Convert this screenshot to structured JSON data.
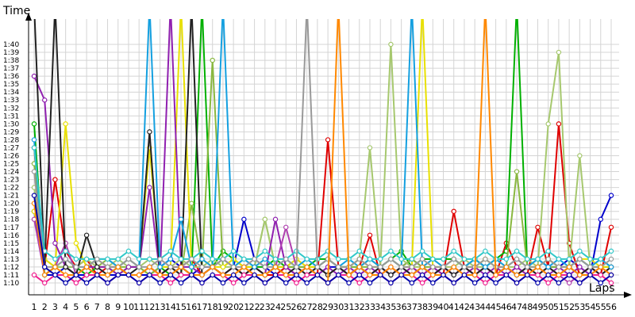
{
  "chart_data": {
    "type": "line",
    "title": "",
    "xlabel": "Laps",
    "ylabel": "Time",
    "x": [
      1,
      2,
      3,
      4,
      5,
      6,
      7,
      8,
      9,
      10,
      11,
      12,
      13,
      14,
      15,
      16,
      17,
      18,
      19,
      20,
      21,
      22,
      23,
      24,
      25,
      26,
      27,
      28,
      29,
      30,
      31,
      32,
      33,
      34,
      35,
      36,
      37,
      38,
      39,
      40,
      41,
      42,
      43,
      44,
      45,
      46,
      47,
      48,
      49,
      50,
      51,
      52,
      53,
      54,
      55,
      56
    ],
    "xlim": [
      1,
      56
    ],
    "ylim": [
      69,
      101
    ],
    "y_ticks": [
      70,
      71,
      72,
      73,
      74,
      75,
      76,
      77,
      78,
      79,
      80,
      81,
      82,
      83,
      84,
      85,
      86,
      87,
      88,
      89,
      90,
      91,
      92,
      93,
      94,
      95,
      96,
      97,
      98,
      99,
      100
    ],
    "y_tick_labels": [
      "1:10",
      "1:11",
      "1:12",
      "1:13",
      "1:14",
      "1:15",
      "1:16",
      "1:17",
      "1:18",
      "1:19",
      "1:20",
      "1:21",
      "1:22",
      "1:23",
      "1:24",
      "1:25",
      "1:26",
      "1:27",
      "1:28",
      "1:29",
      "1:30",
      "1:31",
      "1:32",
      "1:33",
      "1:34",
      "1:35",
      "1:36",
      "1:37",
      "1:38",
      "1:39",
      "1:40"
    ],
    "x_tick_labels": [
      "1",
      "2",
      "3",
      "4",
      "5",
      "6",
      "7",
      "8",
      "9",
      "10",
      "11",
      "12",
      "13",
      "14",
      "15",
      "16",
      "17",
      "18",
      "19",
      "20",
      "21",
      "22",
      "23",
      "24",
      "25",
      "26",
      "27",
      "28",
      "29",
      "30",
      "31",
      "32",
      "33",
      "34",
      "35",
      "36",
      "37",
      "38",
      "39",
      "40",
      "41",
      "42",
      "43",
      "44",
      "45",
      "46",
      "47",
      "48",
      "49",
      "50",
      "51",
      "52",
      "53",
      "54",
      "55",
      "56"
    ],
    "grid": true,
    "legend": "none",
    "series": [
      {
        "color": "#0000cc",
        "values": [
          79,
          71,
          71,
          72,
          71,
          71,
          71,
          71,
          71,
          71,
          71,
          71,
          72,
          73,
          72,
          71,
          72,
          72,
          73,
          72,
          78,
          73,
          72,
          71,
          72,
          71,
          72,
          71,
          72,
          72,
          71,
          72,
          71,
          72,
          71,
          72,
          73,
          72,
          71,
          72,
          71,
          72,
          73,
          72,
          71,
          72,
          71,
          72,
          73,
          72,
          72,
          73,
          72,
          71,
          78,
          81
        ]
      },
      {
        "color": "#e00000",
        "values": [
          87,
          72,
          83,
          74,
          72,
          73,
          71,
          72,
          72,
          71,
          71,
          72,
          71,
          72,
          72,
          73,
          71,
          72,
          71,
          72,
          71,
          72,
          71,
          71,
          72,
          71,
          72,
          71,
          88,
          72,
          71,
          72,
          76,
          71,
          72,
          71,
          72,
          71,
          72,
          71,
          79,
          72,
          71,
          72,
          71,
          75,
          72,
          71,
          77,
          72,
          90,
          75,
          71,
          72,
          71,
          77
        ]
      },
      {
        "color": "#00b000",
        "values": [
          90,
          71,
          72,
          72,
          72,
          71,
          72,
          72,
          71,
          72,
          72,
          71,
          72,
          71,
          72,
          71,
          105,
          72,
          74,
          73,
          72,
          72,
          72,
          73,
          72,
          72,
          72,
          73,
          73,
          72,
          72,
          72,
          73,
          72,
          73,
          74,
          72,
          73,
          73,
          73,
          73,
          72,
          73,
          72,
          73,
          74,
          105,
          72,
          72,
          73,
          72,
          72,
          73,
          72,
          72,
          72
        ]
      },
      {
        "color": "#8ab840",
        "values": [
          85,
          71,
          72,
          72,
          71,
          72,
          72,
          73,
          72,
          72,
          72,
          71,
          72,
          72,
          71,
          80,
          72,
          98,
          72,
          73,
          72,
          72,
          78,
          72,
          72,
          72,
          72,
          72,
          73,
          72,
          72,
          72,
          72,
          72,
          73,
          72,
          73,
          72,
          72,
          72,
          73,
          72,
          72,
          73,
          72,
          72,
          84,
          72,
          73,
          72,
          72,
          72,
          73,
          72,
          72,
          72
        ]
      },
      {
        "color": "#a6c86e",
        "values": [
          82,
          73,
          72,
          72,
          72,
          73,
          72,
          72,
          73,
          72,
          72,
          73,
          72,
          72,
          73,
          72,
          72,
          73,
          72,
          72,
          73,
          72,
          78,
          72,
          72,
          73,
          72,
          72,
          73,
          72,
          72,
          73,
          87,
          72,
          100,
          73,
          72,
          72,
          73,
          72,
          72,
          73,
          72,
          72,
          73,
          72,
          72,
          73,
          72,
          90,
          99,
          72,
          86,
          72,
          73,
          72
        ]
      },
      {
        "color": "#e8e000",
        "values": [
          79,
          73,
          72,
          90,
          75,
          72,
          73,
          72,
          72,
          73,
          72,
          87,
          72,
          72,
          105,
          72,
          73,
          72,
          72,
          73,
          72,
          72,
          73,
          72,
          72,
          73,
          72,
          72,
          73,
          72,
          72,
          73,
          72,
          72,
          73,
          72,
          72,
          105,
          72,
          72,
          73,
          72,
          72,
          73,
          72,
          72,
          73,
          72,
          72,
          73,
          72,
          72,
          73,
          73,
          72,
          72
        ]
      },
      {
        "color": "#9020b0",
        "values": [
          96,
          93,
          75,
          72,
          71,
          72,
          72,
          72,
          71,
          72,
          72,
          82,
          71,
          105,
          72,
          72,
          71,
          72,
          71,
          72,
          71,
          72,
          71,
          78,
          72,
          71,
          72,
          71,
          72,
          71,
          72,
          71,
          72,
          71,
          72,
          71,
          72,
          71,
          72,
          71,
          72,
          71,
          72,
          71,
          72,
          71,
          72,
          71,
          72,
          71,
          72,
          71,
          72,
          71,
          72,
          71
        ]
      },
      {
        "color": "#b040b0",
        "values": [
          78,
          71,
          72,
          75,
          71,
          72,
          71,
          71,
          72,
          71,
          71,
          72,
          71,
          71,
          72,
          71,
          71,
          72,
          71,
          71,
          72,
          71,
          71,
          72,
          77,
          72,
          71,
          72,
          71,
          72,
          71,
          72,
          71,
          72,
          71,
          72,
          71,
          72,
          71,
          72,
          71,
          72,
          71,
          72,
          71,
          72,
          71,
          72,
          71,
          72,
          71,
          70,
          71,
          72,
          71,
          72
        ]
      },
      {
        "color": "#222222",
        "values": [
          105,
          72,
          105,
          72,
          71,
          76,
          72,
          71,
          72,
          71,
          72,
          89,
          71,
          72,
          71,
          105,
          71,
          72,
          71,
          72,
          71,
          72,
          71,
          72,
          71,
          72,
          71,
          72,
          71,
          72,
          71,
          72,
          71,
          72,
          71,
          72,
          71,
          72,
          71,
          72,
          71,
          72,
          71,
          72,
          71,
          72,
          71,
          72,
          71,
          72,
          71,
          72,
          71,
          72,
          71,
          72
        ]
      },
      {
        "color": "#14a0e0",
        "values": [
          88,
          71,
          72,
          73,
          72,
          72,
          73,
          73,
          72,
          73,
          72,
          105,
          72,
          73,
          78,
          72,
          73,
          72,
          105,
          72,
          73,
          72,
          73,
          72,
          73,
          72,
          73,
          72,
          73,
          72,
          73,
          72,
          73,
          72,
          73,
          72,
          105,
          72,
          73,
          72,
          73,
          72,
          73,
          72,
          73,
          72,
          73,
          72,
          73,
          72,
          73,
          72,
          73,
          72,
          73,
          72
        ]
      },
      {
        "color": "#30c8c8",
        "values": [
          87,
          74,
          73,
          74,
          73,
          73,
          73,
          73,
          73,
          74,
          73,
          73,
          73,
          74,
          73,
          73,
          74,
          73,
          73,
          74,
          73,
          73,
          74,
          73,
          73,
          74,
          73,
          73,
          74,
          73,
          73,
          74,
          73,
          73,
          74,
          73,
          73,
          74,
          73,
          73,
          74,
          73,
          73,
          74,
          73,
          73,
          74,
          73,
          73,
          74,
          73,
          73,
          74,
          73,
          73,
          74
        ]
      },
      {
        "color": "#999999",
        "values": [
          84,
          72,
          72,
          73,
          72,
          72,
          73,
          72,
          72,
          73,
          72,
          72,
          73,
          72,
          72,
          73,
          72,
          72,
          73,
          72,
          72,
          73,
          72,
          72,
          73,
          72,
          105,
          72,
          73,
          72,
          72,
          73,
          72,
          72,
          73,
          72,
          72,
          73,
          72,
          72,
          73,
          72,
          72,
          73,
          72,
          72,
          73,
          72,
          72,
          73,
          72,
          72,
          73,
          72,
          72,
          73
        ]
      },
      {
        "color": "#f02090",
        "values": [
          71,
          70,
          71,
          71,
          70,
          71,
          71,
          70,
          71,
          71,
          70,
          71,
          71,
          70,
          71,
          71,
          70,
          71,
          71,
          70,
          71,
          71,
          70,
          71,
          71,
          70,
          71,
          71,
          70,
          71,
          71,
          70,
          71,
          71,
          70,
          71,
          71,
          70,
          71,
          71,
          70,
          71,
          71,
          70,
          71,
          71,
          70,
          71,
          71,
          70,
          71,
          71,
          70,
          71,
          71,
          70
        ]
      },
      {
        "color": "#ff8800",
        "values": [
          80,
          71,
          72,
          71,
          71,
          72,
          71,
          71,
          72,
          71,
          71,
          72,
          71,
          71,
          72,
          71,
          71,
          72,
          71,
          71,
          72,
          71,
          71,
          72,
          71,
          71,
          72,
          71,
          70,
          105,
          71,
          72,
          71,
          71,
          72,
          71,
          71,
          72,
          71,
          71,
          72,
          71,
          71,
          105,
          71,
          72,
          71,
          71,
          72,
          71,
          71,
          72,
          71,
          71,
          72,
          71
        ]
      },
      {
        "color": "#0000aa",
        "values": [
          81,
          72,
          71,
          70,
          71,
          70,
          71,
          70,
          71,
          71,
          70,
          71,
          70,
          71,
          70,
          71,
          70,
          71,
          70,
          71,
          70,
          71,
          70,
          71,
          70,
          71,
          70,
          71,
          70,
          71,
          70,
          71,
          70,
          71,
          70,
          71,
          70,
          71,
          70,
          71,
          70,
          71,
          70,
          71,
          70,
          71,
          70,
          71,
          70,
          71,
          70,
          71,
          70,
          71,
          70,
          71
        ]
      }
    ]
  }
}
